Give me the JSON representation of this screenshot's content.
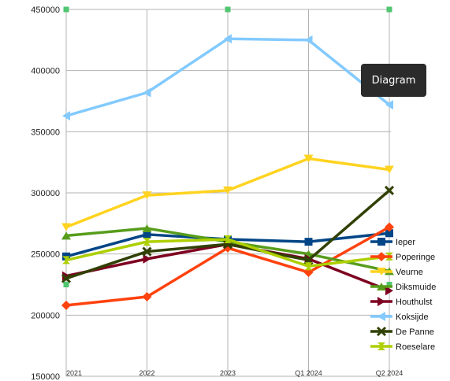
{
  "tooltip": "Diagram",
  "chart_data": {
    "type": "line",
    "categories": [
      "2021",
      "2022",
      "2023",
      "Q1 2024",
      "Q2 2024"
    ],
    "ylim": [
      150000,
      450000
    ],
    "yticks": [
      "150000",
      "200000",
      "250000",
      "300000",
      "350000",
      "400000",
      "450000"
    ],
    "grid": true,
    "legend_placement": "right",
    "series": [
      {
        "name": "Ieper",
        "color": "#004586",
        "marker": "square",
        "values": [
          248000,
          266000,
          262000,
          260000,
          267000
        ]
      },
      {
        "name": "Poperinge",
        "color": "#ff420e",
        "marker": "diamond",
        "values": [
          208000,
          215000,
          255000,
          235000,
          272000
        ]
      },
      {
        "name": "Veurne",
        "color": "#ffd320",
        "marker": "triangle-down",
        "values": [
          272000,
          298000,
          302000,
          328000,
          319000
        ]
      },
      {
        "name": "Diksmuide",
        "color": "#579d1c",
        "marker": "triangle-up",
        "values": [
          265000,
          271000,
          260000,
          250000,
          236000
        ]
      },
      {
        "name": "Houthulst",
        "color": "#7e0021",
        "marker": "triangle-right",
        "values": [
          232000,
          246000,
          258000,
          246000,
          220000
        ]
      },
      {
        "name": "Koksijde",
        "color": "#83caff",
        "marker": "triangle-left",
        "values": [
          363000,
          382000,
          426000,
          425000,
          372000
        ]
      },
      {
        "name": "De Panne",
        "color": "#314004",
        "marker": "x",
        "values": [
          230000,
          252000,
          258000,
          245000,
          302000
        ]
      },
      {
        "name": "Roeselare",
        "color": "#aecf00",
        "marker": "hourglass",
        "values": [
          245000,
          260000,
          262000,
          240000,
          248000
        ]
      }
    ],
    "extra_markers": {
      "color": "#4fc66f",
      "points": [
        [
          "2021",
          450000
        ],
        [
          "2023",
          450000
        ],
        [
          "Q2 2024",
          450000
        ],
        [
          "2021",
          225000
        ],
        [
          "Q2 2024",
          225000
        ]
      ]
    }
  }
}
